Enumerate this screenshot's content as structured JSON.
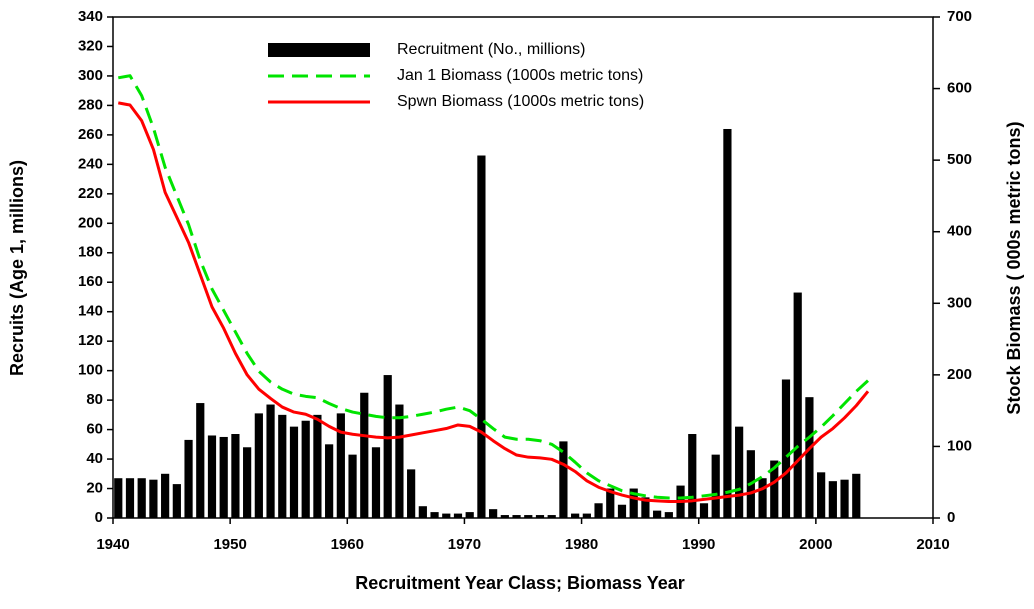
{
  "chart_data": {
    "type": "bar_line_dual",
    "xlabel": "Recruitment Year Class; Biomass Year",
    "ylabel": "Recruits (Age 1, millions)",
    "y2label": "Stock Biomass ( 000s metric tons)",
    "xlim": [
      1940,
      2010
    ],
    "xticks": [
      1940,
      1950,
      1960,
      1970,
      1980,
      1990,
      2000,
      2010
    ],
    "ylim": [
      0,
      340
    ],
    "yticks": [
      0,
      20,
      40,
      60,
      80,
      100,
      120,
      140,
      160,
      180,
      200,
      220,
      240,
      260,
      280,
      300,
      320,
      340
    ],
    "y2lim": [
      0,
      700
    ],
    "y2ticks": [
      0,
      100,
      200,
      300,
      400,
      500,
      600,
      700
    ],
    "series": [
      {
        "name": "Recruitment (No., millions)",
        "type": "bar",
        "color": "#000000",
        "x": [
          1940,
          1941,
          1942,
          1943,
          1944,
          1945,
          1946,
          1947,
          1948,
          1949,
          1950,
          1951,
          1952,
          1953,
          1954,
          1955,
          1956,
          1957,
          1958,
          1959,
          1960,
          1961,
          1962,
          1963,
          1964,
          1965,
          1966,
          1967,
          1968,
          1969,
          1970,
          1971,
          1972,
          1973,
          1974,
          1975,
          1976,
          1977,
          1978,
          1979,
          1980,
          1981,
          1982,
          1983,
          1984,
          1985,
          1986,
          1987,
          1988,
          1989,
          1990,
          1991,
          1992,
          1993,
          1994,
          1995,
          1996,
          1997,
          1998,
          1999,
          2000,
          2001,
          2002,
          2003
        ],
        "values": [
          27,
          27,
          27,
          26,
          30,
          23,
          53,
          78,
          56,
          55,
          57,
          48,
          71,
          77,
          70,
          62,
          66,
          70,
          50,
          71,
          43,
          85,
          48,
          97,
          77,
          33,
          8,
          4,
          3,
          3,
          4,
          246,
          6,
          2,
          2,
          2,
          2,
          2,
          52,
          3,
          3,
          10,
          20,
          9,
          20,
          14,
          5,
          4,
          22,
          57,
          10,
          43,
          264,
          62,
          46,
          27,
          39,
          94,
          153,
          82,
          31,
          25,
          26,
          30
        ]
      },
      {
        "name": "Jan 1 Biomass (1000s metric tons)",
        "type": "line",
        "dash": true,
        "color": "#00e400",
        "axis": "y2",
        "x": [
          1940,
          1941,
          1942,
          1943,
          1944,
          1945,
          1946,
          1947,
          1948,
          1949,
          1950,
          1951,
          1952,
          1953,
          1954,
          1955,
          1956,
          1957,
          1958,
          1959,
          1960,
          1961,
          1962,
          1963,
          1964,
          1965,
          1966,
          1967,
          1968,
          1969,
          1970,
          1971,
          1972,
          1973,
          1974,
          1975,
          1976,
          1977,
          1978,
          1979,
          1980,
          1981,
          1982,
          1983,
          1984,
          1985,
          1986,
          1987,
          1988,
          1989,
          1990,
          1991,
          1992,
          1993,
          1994,
          1995,
          1996,
          1997,
          1998,
          1999,
          2000,
          2001,
          2002,
          2003,
          2004
        ],
        "values": [
          615,
          618,
          590,
          545,
          490,
          450,
          410,
          360,
          320,
          290,
          260,
          230,
          205,
          190,
          180,
          173,
          170,
          168,
          160,
          153,
          148,
          145,
          142,
          140,
          140,
          142,
          145,
          148,
          152,
          155,
          150,
          138,
          125,
          113,
          110,
          110,
          108,
          103,
          92,
          78,
          63,
          52,
          45,
          38,
          34,
          31,
          29,
          28,
          28,
          29,
          31,
          33,
          36,
          40,
          48,
          58,
          70,
          85,
          100,
          113,
          127,
          143,
          160,
          177,
          192
        ]
      },
      {
        "name": "Spwn Biomass (1000s metric tons)",
        "type": "line",
        "dash": false,
        "color": "#ff0000",
        "axis": "y2",
        "x": [
          1940,
          1941,
          1942,
          1943,
          1944,
          1945,
          1946,
          1947,
          1948,
          1949,
          1950,
          1951,
          1952,
          1953,
          1954,
          1955,
          1956,
          1957,
          1958,
          1959,
          1960,
          1961,
          1962,
          1963,
          1964,
          1965,
          1966,
          1967,
          1968,
          1969,
          1970,
          1971,
          1972,
          1973,
          1974,
          1975,
          1976,
          1977,
          1978,
          1979,
          1980,
          1981,
          1982,
          1983,
          1984,
          1985,
          1986,
          1987,
          1988,
          1989,
          1990,
          1991,
          1992,
          1993,
          1994,
          1995,
          1996,
          1997,
          1998,
          1999,
          2000,
          2001,
          2002,
          2003,
          2004
        ],
        "values": [
          580,
          577,
          555,
          515,
          455,
          420,
          385,
          340,
          295,
          265,
          230,
          200,
          180,
          167,
          155,
          148,
          145,
          138,
          128,
          120,
          117,
          115,
          113,
          112,
          113,
          116,
          119,
          122,
          125,
          130,
          128,
          120,
          108,
          97,
          88,
          85,
          84,
          82,
          75,
          65,
          52,
          43,
          37,
          32,
          28,
          25,
          24,
          23,
          23,
          24,
          26,
          28,
          30,
          32,
          35,
          41,
          50,
          63,
          80,
          97,
          113,
          125,
          140,
          157,
          177
        ]
      }
    ]
  }
}
